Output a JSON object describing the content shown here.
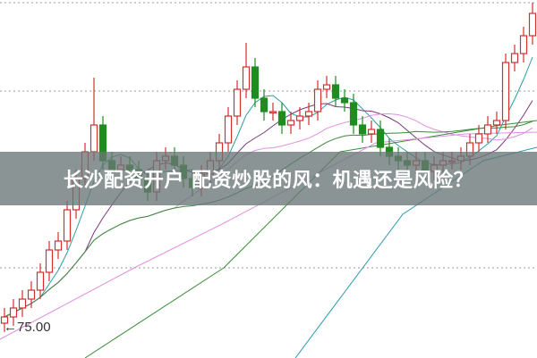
{
  "title": "长沙配资开户 配资炒股的风：机遇还是风险？",
  "chart_data": {
    "type": "candlestick",
    "price_marker": {
      "label": "75.00",
      "arrow": "←"
    },
    "ylim": [
      70.7,
      110.8
    ],
    "gridlines": [
      110.5,
      100.6,
      80.8
    ],
    "grid": "horizontal dotted",
    "colors": {
      "up": "#d03030",
      "down": "#1e8c1e",
      "ma5": "#2aa0a0",
      "ma10": "#7a3a7a",
      "ma20": "#e090e0",
      "ma30": "#3a8a3a",
      "ma60": "#2a9ab0"
    },
    "open": [
      74.6,
      75.3,
      76.3,
      77.3,
      78.3,
      80.3,
      82.8,
      83.8,
      87.3,
      90.8,
      93.8,
      96.8,
      92.8,
      91.8,
      92.3,
      91.8,
      90.8,
      89.3,
      92.8,
      93.3,
      92.3,
      90.8,
      89.8,
      91.3,
      92.8,
      94.8,
      97.8,
      100.8,
      103.3,
      99.8,
      98.3,
      98.3,
      96.8,
      97.3,
      97.8,
      98.3,
      100.8,
      101.3,
      99.8,
      99.3,
      96.8,
      95.8,
      96.3,
      94.3,
      93.3,
      92.8,
      92.3,
      92.8,
      91.6,
      92.3,
      92.8,
      92.8,
      93.3,
      94.8,
      95.8,
      96.8,
      97.3,
      103.8,
      104.8,
      106.8
    ],
    "high": [
      76.3,
      77.3,
      78.3,
      79.3,
      81.3,
      83.8,
      84.8,
      88.3,
      91.8,
      94.8,
      102.1,
      97.8,
      93.8,
      93.3,
      93.3,
      92.8,
      91.8,
      93.8,
      94.3,
      94.3,
      93.3,
      91.8,
      92.3,
      93.8,
      95.8,
      98.8,
      101.8,
      106.0,
      104.3,
      100.8,
      99.3,
      99.3,
      98.3,
      98.8,
      99.3,
      101.8,
      102.3,
      102.3,
      100.8,
      100.3,
      97.8,
      97.3,
      97.3,
      95.3,
      94.3,
      93.8,
      93.8,
      93.8,
      93.3,
      93.8,
      93.8,
      94.3,
      95.8,
      96.8,
      97.8,
      98.3,
      104.8,
      105.8,
      107.8,
      110.5
    ],
    "low": [
      73.6,
      74.3,
      75.3,
      76.3,
      77.3,
      79.3,
      81.8,
      82.8,
      86.3,
      89.8,
      92.8,
      91.8,
      90.8,
      90.8,
      90.8,
      89.8,
      88.3,
      88.3,
      91.8,
      91.3,
      89.8,
      88.8,
      88.8,
      90.3,
      91.8,
      93.8,
      96.8,
      99.8,
      98.8,
      97.3,
      97.3,
      95.8,
      95.8,
      96.3,
      96.8,
      97.3,
      99.8,
      98.8,
      98.3,
      95.8,
      94.8,
      94.8,
      93.3,
      92.3,
      91.8,
      91.3,
      91.3,
      90.6,
      90.6,
      91.3,
      91.8,
      91.8,
      92.3,
      93.8,
      94.8,
      95.8,
      96.3,
      102.8,
      103.8,
      105.8
    ],
    "close": [
      75.3,
      76.3,
      77.3,
      78.3,
      80.3,
      82.8,
      83.8,
      87.3,
      90.8,
      93.8,
      96.8,
      92.8,
      91.8,
      92.3,
      91.8,
      90.8,
      89.3,
      92.8,
      93.3,
      92.3,
      90.8,
      89.8,
      91.3,
      92.8,
      94.8,
      97.8,
      100.8,
      103.3,
      99.8,
      98.3,
      98.3,
      96.8,
      97.3,
      97.8,
      98.3,
      100.8,
      101.3,
      99.8,
      99.3,
      96.8,
      95.8,
      96.3,
      94.3,
      93.3,
      92.8,
      92.3,
      92.8,
      91.6,
      92.3,
      92.8,
      92.8,
      93.3,
      94.8,
      95.8,
      96.8,
      97.3,
      103.8,
      104.8,
      106.8,
      109.3
    ],
    "moving_averages": [
      5,
      10,
      20,
      30
    ]
  }
}
